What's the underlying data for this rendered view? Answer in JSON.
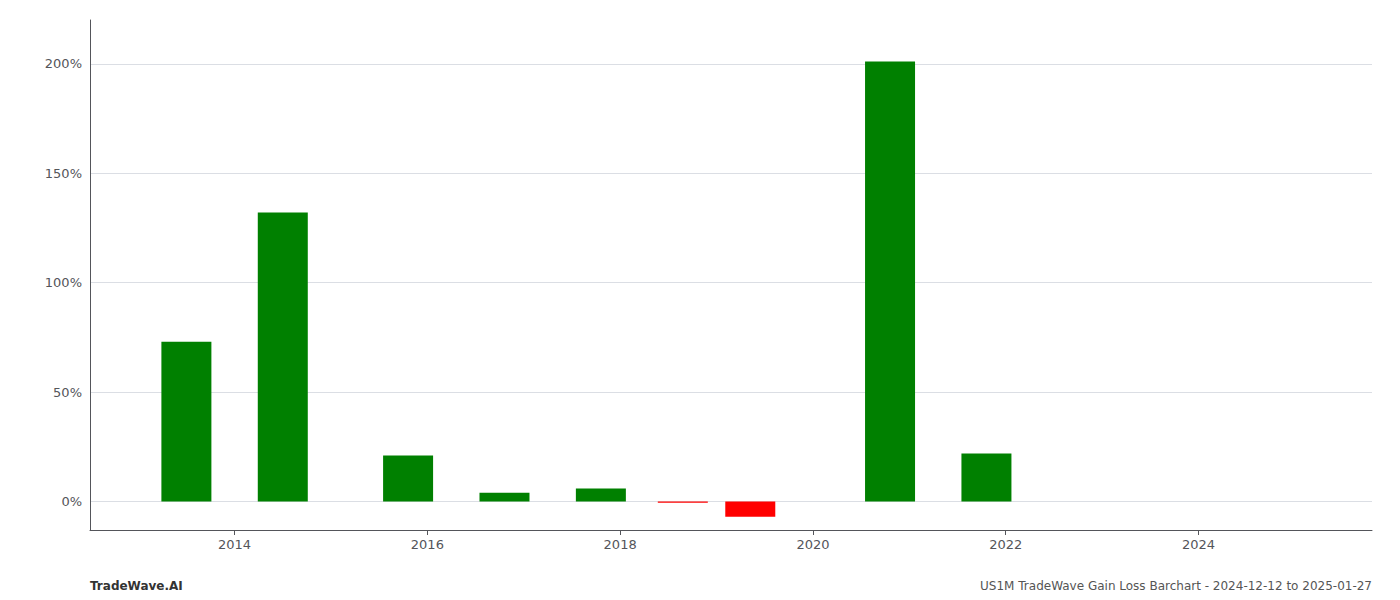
{
  "chart_data": {
    "type": "bar",
    "x": [
      2013.5,
      2014.5,
      2015.8,
      2016.8,
      2017.8,
      2018.65,
      2019.35,
      2020.8,
      2021.8
    ],
    "values": [
      0.73,
      1.32,
      0.21,
      0.04,
      0.06,
      -0.005,
      -0.07,
      2.01,
      0.22
    ],
    "colors": [
      "#008000",
      "#008000",
      "#008000",
      "#008000",
      "#008000",
      "#ff0000",
      "#ff0000",
      "#008000",
      "#008000"
    ],
    "xlim": [
      2012.5,
      2025.8
    ],
    "xticks": [
      2014,
      2016,
      2018,
      2020,
      2022,
      2024
    ],
    "ylim": [
      -0.13,
      2.2
    ],
    "yticks": [
      {
        "value": 0.0,
        "label": "0%"
      },
      {
        "value": 0.5,
        "label": "50%"
      },
      {
        "value": 1.0,
        "label": "100%"
      },
      {
        "value": 1.5,
        "label": "150%"
      },
      {
        "value": 2.0,
        "label": "200%"
      }
    ],
    "grid": true,
    "annotations": [
      "TradeWave.AI",
      "US1M TradeWave Gain Loss Barchart - 2024-12-12 to 2025-01-27"
    ]
  }
}
